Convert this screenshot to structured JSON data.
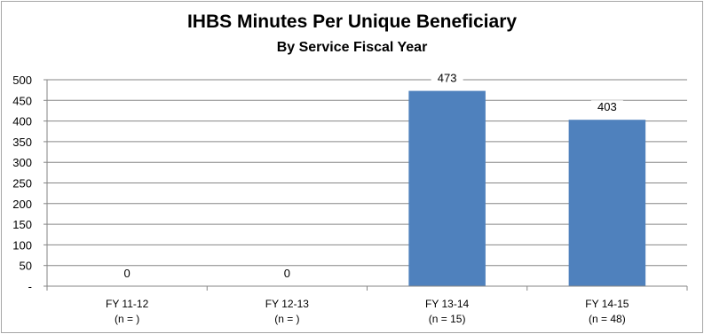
{
  "chart_data": {
    "type": "bar",
    "title": "IHBS Minutes Per Unique Beneficiary",
    "subtitle": "By Service Fiscal Year",
    "categories": [
      "FY 11-12",
      "FY 12-13",
      "FY 13-14",
      "FY 14-15"
    ],
    "category_notes": [
      "(n = )",
      "(n = )",
      "(n = 15)",
      "(n = 48)"
    ],
    "values": [
      0,
      0,
      473,
      403
    ],
    "data_labels": [
      "0",
      "0",
      "473",
      "403"
    ],
    "ylim": [
      0,
      500
    ],
    "y_ticks": [
      0,
      50,
      100,
      150,
      200,
      250,
      300,
      350,
      400,
      450,
      500
    ],
    "y_tick_labels": [
      "-",
      "50",
      "100",
      "150",
      "200",
      "250",
      "300",
      "350",
      "400",
      "450",
      "500"
    ],
    "grid": true,
    "legend": "none",
    "bar_color": "#4f81bd"
  }
}
